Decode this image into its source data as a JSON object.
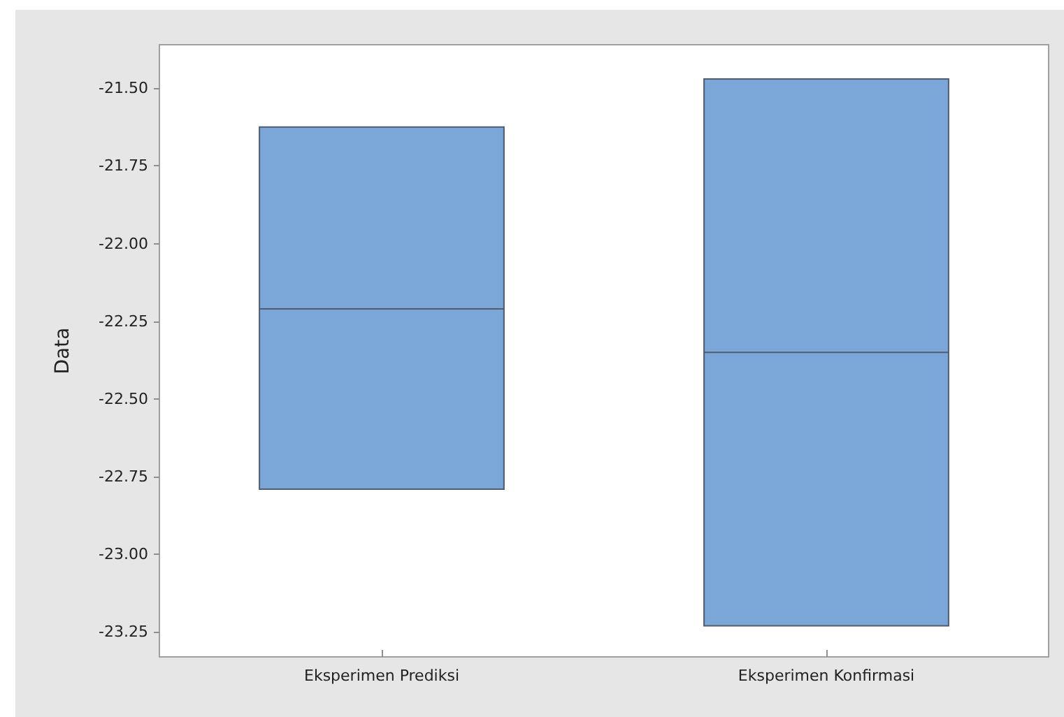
{
  "chart_data": {
    "type": "box",
    "ylabel": "Data",
    "categories": [
      "Eksperimen Prediksi",
      "Eksperimen Konfirmasi"
    ],
    "series": [
      {
        "color": "#7ba6d8",
        "boxes": [
          {
            "low": -22.79,
            "q1": -22.79,
            "median": -22.21,
            "q3": -21.625,
            "high": -21.625
          },
          {
            "low": -23.23,
            "q1": -23.23,
            "median": -22.35,
            "q3": -21.47,
            "high": -21.47
          }
        ]
      }
    ],
    "ylim": [
      -23.33,
      -21.36
    ],
    "yticks": [
      {
        "value": -23.25,
        "label": "-23.25"
      },
      {
        "value": -23,
        "label": "-23.00"
      },
      {
        "value": -22.75,
        "label": "-22.75"
      },
      {
        "value": -22.5,
        "label": "-22.50"
      },
      {
        "value": -22.25,
        "label": "-22.25"
      },
      {
        "value": -22,
        "label": "-22.00"
      },
      {
        "value": -21.75,
        "label": "-21.75"
      },
      {
        "value": -21.5,
        "label": "-21.50"
      }
    ],
    "grid": false
  }
}
